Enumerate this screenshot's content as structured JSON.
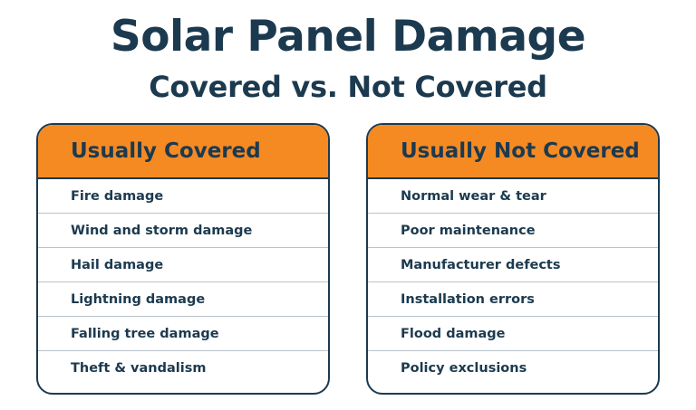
{
  "title": "Solar Panel Damage",
  "subtitle": "Covered vs. Not Covered",
  "covered": {
    "heading": "Usually Covered",
    "items": [
      "Fire damage",
      "Wind and storm damage",
      "Hail damage",
      "Lightning damage",
      "Falling tree damage",
      "Theft & vandalism"
    ]
  },
  "not_covered": {
    "heading": "Usually Not Covered",
    "items": [
      "Normal wear & tear",
      "Poor maintenance",
      "Manufacturer defects",
      "Installation errors",
      "Flood damage",
      "Policy exclusions"
    ]
  },
  "colors": {
    "navy": "#1c3a4f",
    "orange": "#f58a23",
    "divider": "#b9c3cb",
    "background": "#ffffff"
  }
}
